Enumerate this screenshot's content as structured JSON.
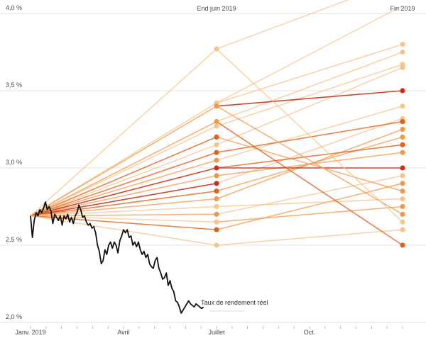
{
  "chart_data": {
    "type": "line",
    "title": "",
    "xlabel": "",
    "ylabel": "",
    "ylim": [
      2.0,
      4.0
    ],
    "y_ticks": [
      {
        "value": 4.0,
        "label": "4,0 %"
      },
      {
        "value": 3.5,
        "label": "3,5 %"
      },
      {
        "value": 3.0,
        "label": "3,0 %"
      },
      {
        "value": 2.5,
        "label": "2,5 %"
      },
      {
        "value": 2.0,
        "label": "2,0 %"
      }
    ],
    "x_range_months": [
      0,
      12
    ],
    "x_labels": [
      {
        "month": 0,
        "label": "Janv. 2019"
      },
      {
        "month": 3,
        "label": "Avril"
      },
      {
        "month": 6,
        "label": "Juillet"
      },
      {
        "month": 9,
        "label": "Oct."
      }
    ],
    "period_labels": [
      {
        "month": 6,
        "label": "End juin 2019"
      },
      {
        "month": 12,
        "label": "Fin 2019"
      }
    ],
    "start_value": 2.69,
    "colors": {
      "actual": "#111111",
      "forecast_light": "#f6c58e",
      "forecast_mid": "#f09a4d",
      "forecast_dark": "#e2631d",
      "forecast_darkest": "#c8341a",
      "grid": "#e3e3e3"
    },
    "actual_series": {
      "name": "Taux de rendement réel",
      "x": [
        0.0,
        0.06,
        0.12,
        0.18,
        0.24,
        0.3,
        0.36,
        0.42,
        0.48,
        0.54,
        0.6,
        0.66,
        0.72,
        0.78,
        0.84,
        0.9,
        0.96,
        1.02,
        1.08,
        1.14,
        1.2,
        1.26,
        1.32,
        1.38,
        1.44,
        1.5,
        1.56,
        1.62,
        1.68,
        1.74,
        1.8,
        1.86,
        1.92,
        1.98,
        2.04,
        2.1,
        2.16,
        2.22,
        2.28,
        2.34,
        2.4,
        2.46,
        2.52,
        2.58,
        2.64,
        2.7,
        2.76,
        2.82,
        2.88,
        2.94,
        3.0,
        3.06,
        3.12,
        3.18,
        3.24,
        3.3,
        3.36,
        3.42,
        3.48,
        3.54,
        3.6,
        3.66,
        3.72,
        3.78,
        3.84,
        3.9,
        3.96,
        4.02,
        4.08,
        4.14,
        4.2,
        4.26,
        4.32,
        4.38,
        4.44,
        4.5,
        4.56,
        4.62,
        4.68,
        4.74,
        4.8,
        4.86,
        4.92,
        4.98,
        5.04,
        5.1,
        5.16,
        5.22,
        5.28,
        5.34,
        5.4,
        5.46,
        5.52,
        5.58
      ],
      "values": [
        2.69,
        2.55,
        2.66,
        2.71,
        2.69,
        2.73,
        2.71,
        2.74,
        2.78,
        2.73,
        2.75,
        2.72,
        2.64,
        2.7,
        2.68,
        2.66,
        2.69,
        2.63,
        2.69,
        2.67,
        2.7,
        2.65,
        2.68,
        2.64,
        2.69,
        2.71,
        2.76,
        2.73,
        2.68,
        2.69,
        2.65,
        2.63,
        2.64,
        2.61,
        2.62,
        2.58,
        2.5,
        2.46,
        2.38,
        2.4,
        2.47,
        2.44,
        2.5,
        2.52,
        2.48,
        2.52,
        2.5,
        2.45,
        2.53,
        2.56,
        2.6,
        2.58,
        2.6,
        2.55,
        2.56,
        2.5,
        2.52,
        2.49,
        2.52,
        2.47,
        2.44,
        2.46,
        2.42,
        2.44,
        2.38,
        2.36,
        2.35,
        2.4,
        2.42,
        2.35,
        2.32,
        2.28,
        2.29,
        2.32,
        2.24,
        2.27,
        2.22,
        2.2,
        2.14,
        2.13,
        2.1,
        2.06,
        2.08,
        2.1,
        2.12,
        2.14,
        2.12,
        2.11,
        2.1,
        2.12,
        2.11,
        2.1,
        2.09,
        2.1
      ]
    },
    "forecasts_mid_2019": [
      {
        "value": 3.77,
        "shade": "light"
      },
      {
        "value": 3.42,
        "shade": "light"
      },
      {
        "value": 3.4,
        "shade": "mid"
      },
      {
        "value": 3.3,
        "shade": "mid"
      },
      {
        "value": 3.27,
        "shade": "light"
      },
      {
        "value": 3.2,
        "shade": "dark"
      },
      {
        "value": 3.15,
        "shade": "light"
      },
      {
        "value": 3.1,
        "shade": "dark"
      },
      {
        "value": 3.05,
        "shade": "mid"
      },
      {
        "value": 3.0,
        "shade": "darkest"
      },
      {
        "value": 2.95,
        "shade": "mid"
      },
      {
        "value": 2.9,
        "shade": "darkest"
      },
      {
        "value": 2.85,
        "shade": "dark"
      },
      {
        "value": 2.8,
        "shade": "mid"
      },
      {
        "value": 2.75,
        "shade": "light"
      },
      {
        "value": 2.7,
        "shade": "mid"
      },
      {
        "value": 2.65,
        "shade": "light"
      },
      {
        "value": 2.6,
        "shade": "dark"
      },
      {
        "value": 2.5,
        "shade": "light"
      }
    ],
    "forecasts_end_2019": [
      {
        "value": 3.8,
        "shade": "light",
        "from": 3.42
      },
      {
        "value": 3.75,
        "shade": "light",
        "from": 3.3
      },
      {
        "value": 3.67,
        "shade": "light",
        "from": 3.27
      },
      {
        "value": 3.65,
        "shade": "light",
        "from": 3.15
      },
      {
        "value": 3.5,
        "shade": "darkest",
        "from": 3.4
      },
      {
        "value": 3.4,
        "shade": "light",
        "from": 3.05
      },
      {
        "value": 3.32,
        "shade": "light",
        "from": 2.9
      },
      {
        "value": 3.3,
        "shade": "dark",
        "from": 3.1
      },
      {
        "value": 3.25,
        "shade": "mid",
        "from": 2.8
      },
      {
        "value": 3.2,
        "shade": "mid",
        "from": 2.85
      },
      {
        "value": 3.15,
        "shade": "dark",
        "from": 3.0
      },
      {
        "value": 3.1,
        "shade": "mid",
        "from": 2.95
      },
      {
        "value": 3.0,
        "shade": "darkest",
        "from": 3.0
      },
      {
        "value": 2.95,
        "shade": "light",
        "from": 2.7
      },
      {
        "value": 2.9,
        "shade": "mid",
        "from": 2.6
      },
      {
        "value": 2.85,
        "shade": "mid",
        "from": 3.2
      },
      {
        "value": 2.8,
        "shade": "light",
        "from": 2.75
      },
      {
        "value": 2.75,
        "shade": "mid",
        "from": 2.65
      },
      {
        "value": 2.7,
        "shade": "mid",
        "from": 3.4
      },
      {
        "value": 2.65,
        "shade": "light",
        "from": 3.77
      },
      {
        "value": 2.6,
        "shade": "light",
        "from": 2.5
      },
      {
        "value": 2.5,
        "shade": "dark",
        "from": 3.3
      }
    ],
    "offchart_forecasts": [
      {
        "from": 3.77,
        "to": 4.22,
        "shade": "light"
      },
      {
        "from": 3.42,
        "to": 4.05,
        "shade": "light"
      }
    ],
    "annotation": {
      "text": "Taux de rendement réel",
      "month": 6.0,
      "value": 2.12
    }
  }
}
